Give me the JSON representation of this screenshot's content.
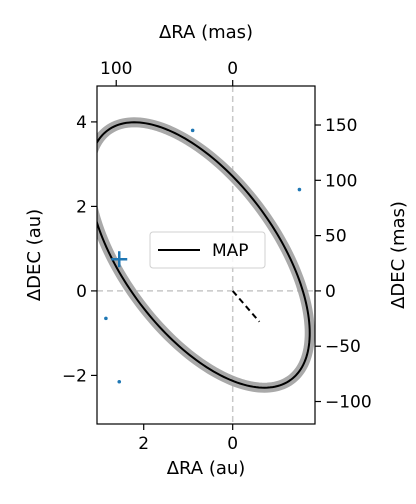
{
  "chart_data": {
    "type": "scatter",
    "xlabel_bottom": "ΔRA (au)",
    "xlabel_top": "ΔRA (mas)",
    "ylabel_left": "ΔDEC (au)",
    "ylabel_right": "ΔDEC (mas)",
    "x_inverted": true,
    "xlim_au": [
      3.05,
      -1.85
    ],
    "ylim_au": [
      -3.15,
      4.85
    ],
    "xticks_bottom": [
      2,
      0
    ],
    "xticks_bottom_labels": [
      "2",
      "0"
    ],
    "xticks_top_mas": [
      100,
      0
    ],
    "xticks_top_labels": [
      "100",
      "0"
    ],
    "yticks_left": [
      -2,
      0,
      2,
      4
    ],
    "yticks_left_labels": [
      "−2",
      "0",
      "2",
      "4"
    ],
    "yticks_right_mas": [
      -100,
      -50,
      0,
      50,
      100,
      150
    ],
    "yticks_right_labels": [
      "−100",
      "−50",
      "0",
      "50",
      "100",
      "150"
    ],
    "mas_per_au": 38.2,
    "orbit": {
      "name": "MAP",
      "center": [
        0.75,
        0.85
      ],
      "a": 3.6,
      "b": 1.75,
      "rotation_deg": -34,
      "color": "#000000"
    },
    "posterior_band_color": "#a0a0a0",
    "periastron_line": [
      [
        0,
        0
      ],
      [
        -0.6,
        -0.73
      ]
    ],
    "marker": {
      "symbol": "+",
      "x": 2.55,
      "y": 0.75,
      "color": "#1f77b4"
    },
    "epoch_points": [
      {
        "x": 0.9,
        "y": 3.8
      },
      {
        "x": -1.5,
        "y": 2.4
      },
      {
        "x": 2.85,
        "y": -0.65
      },
      {
        "x": 2.55,
        "y": -2.15
      }
    ],
    "grid": "dashed lines at x=0 and y=0",
    "legend": {
      "position": "center",
      "entries": [
        "MAP"
      ]
    }
  }
}
